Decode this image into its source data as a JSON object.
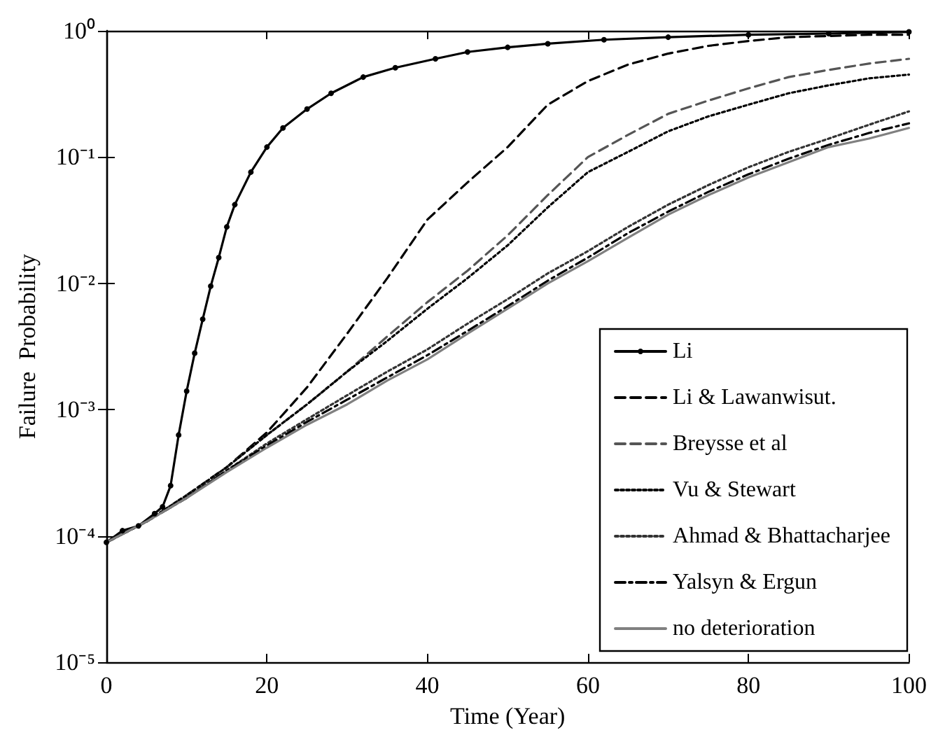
{
  "chart_data": {
    "type": "line",
    "xlabel": "Time (Year)",
    "ylabel": "Failure  Probability",
    "x": [
      0,
      5,
      10,
      15,
      20,
      25,
      30,
      35,
      40,
      45,
      50,
      55,
      60,
      65,
      70,
      75,
      80,
      85,
      90,
      95,
      100
    ],
    "xlim": [
      0,
      100
    ],
    "xticks": [
      0,
      20,
      40,
      60,
      80,
      100
    ],
    "ylim": [
      1e-05,
      1
    ],
    "yticks": [
      {
        "value": 1e-05,
        "label": "10⁻⁵"
      },
      {
        "value": 0.0001,
        "label": "10⁻⁴"
      },
      {
        "value": 0.001,
        "label": "10⁻³"
      },
      {
        "value": 0.01,
        "label": "10⁻²"
      },
      {
        "value": 0.1,
        "label": "10⁻¹"
      },
      {
        "value": 1,
        "label": "10⁰"
      }
    ],
    "log": "y",
    "grid": false,
    "legend": "bottom right",
    "series": [
      {
        "name": "Li",
        "color": "#000000",
        "line_style": "solid",
        "marker": "circle",
        "x": [
          0,
          2,
          4,
          6,
          7,
          8,
          9,
          10,
          11,
          12,
          13,
          14,
          15,
          16,
          18,
          20,
          22,
          25,
          28,
          32,
          36,
          41,
          45,
          50,
          55,
          62,
          70,
          80,
          90,
          100
        ],
        "values": [
          8.9e-05,
          0.00011,
          0.00012,
          0.00015,
          0.00017,
          0.00025,
          0.00063,
          0.0014,
          0.0028,
          0.0052,
          0.0095,
          0.016,
          0.028,
          0.042,
          0.076,
          0.12,
          0.17,
          0.24,
          0.32,
          0.43,
          0.51,
          0.6,
          0.68,
          0.74,
          0.79,
          0.85,
          0.89,
          0.93,
          0.95,
          0.98
        ]
      },
      {
        "name": "Li & Lawanwisut.",
        "color": "#000000",
        "line_style": "dashed",
        "marker": "none",
        "values": [
          8.9e-05,
          0.00013,
          0.00021,
          0.00035,
          0.00066,
          0.0015,
          0.004,
          0.011,
          0.032,
          0.063,
          0.12,
          0.26,
          0.4,
          0.54,
          0.66,
          0.76,
          0.83,
          0.89,
          0.91,
          0.93,
          0.93
        ]
      },
      {
        "name": "Breysse et al",
        "color": "#555555",
        "line_style": "dashed",
        "marker": "none",
        "values": [
          8.9e-05,
          0.00013,
          0.00021,
          0.00035,
          0.00063,
          0.0011,
          0.002,
          0.0038,
          0.0071,
          0.0126,
          0.024,
          0.05,
          0.1,
          0.15,
          0.22,
          0.28,
          0.35,
          0.43,
          0.49,
          0.55,
          0.6
        ]
      },
      {
        "name": "Vu & Stewart",
        "color": "#000000",
        "line_style": "dotted",
        "marker": "none",
        "values": [
          8.9e-05,
          0.00013,
          0.00021,
          0.00035,
          0.00063,
          0.0011,
          0.002,
          0.0035,
          0.0063,
          0.011,
          0.02,
          0.04,
          0.076,
          0.11,
          0.16,
          0.21,
          0.26,
          0.32,
          0.37,
          0.42,
          0.45
        ]
      },
      {
        "name": "Ahmad & Bhattacharjee",
        "color": "#333333",
        "line_style": "dotted",
        "marker": "none",
        "values": [
          8.9e-05,
          0.00013,
          0.0002,
          0.00033,
          0.00054,
          0.00084,
          0.0013,
          0.002,
          0.003,
          0.0048,
          0.0075,
          0.012,
          0.018,
          0.028,
          0.042,
          0.06,
          0.083,
          0.11,
          0.14,
          0.18,
          0.23
        ]
      },
      {
        "name": "Yalsyn & Ergun",
        "color": "#000000",
        "line_style": "dashdot",
        "marker": "none",
        "values": [
          8.9e-05,
          0.00013,
          0.0002,
          0.00033,
          0.00052,
          0.0008,
          0.0012,
          0.0018,
          0.0027,
          0.0042,
          0.0066,
          0.0105,
          0.016,
          0.025,
          0.037,
          0.053,
          0.073,
          0.097,
          0.125,
          0.155,
          0.185
        ]
      },
      {
        "name": "no deterioration",
        "color": "#808080",
        "line_style": "solid",
        "marker": "none",
        "values": [
          8.9e-05,
          0.00013,
          0.0002,
          0.00032,
          0.0005,
          0.00076,
          0.0011,
          0.0017,
          0.0025,
          0.004,
          0.0063,
          0.01,
          0.015,
          0.023,
          0.035,
          0.05,
          0.069,
          0.091,
          0.12,
          0.14,
          0.17
        ]
      }
    ]
  }
}
